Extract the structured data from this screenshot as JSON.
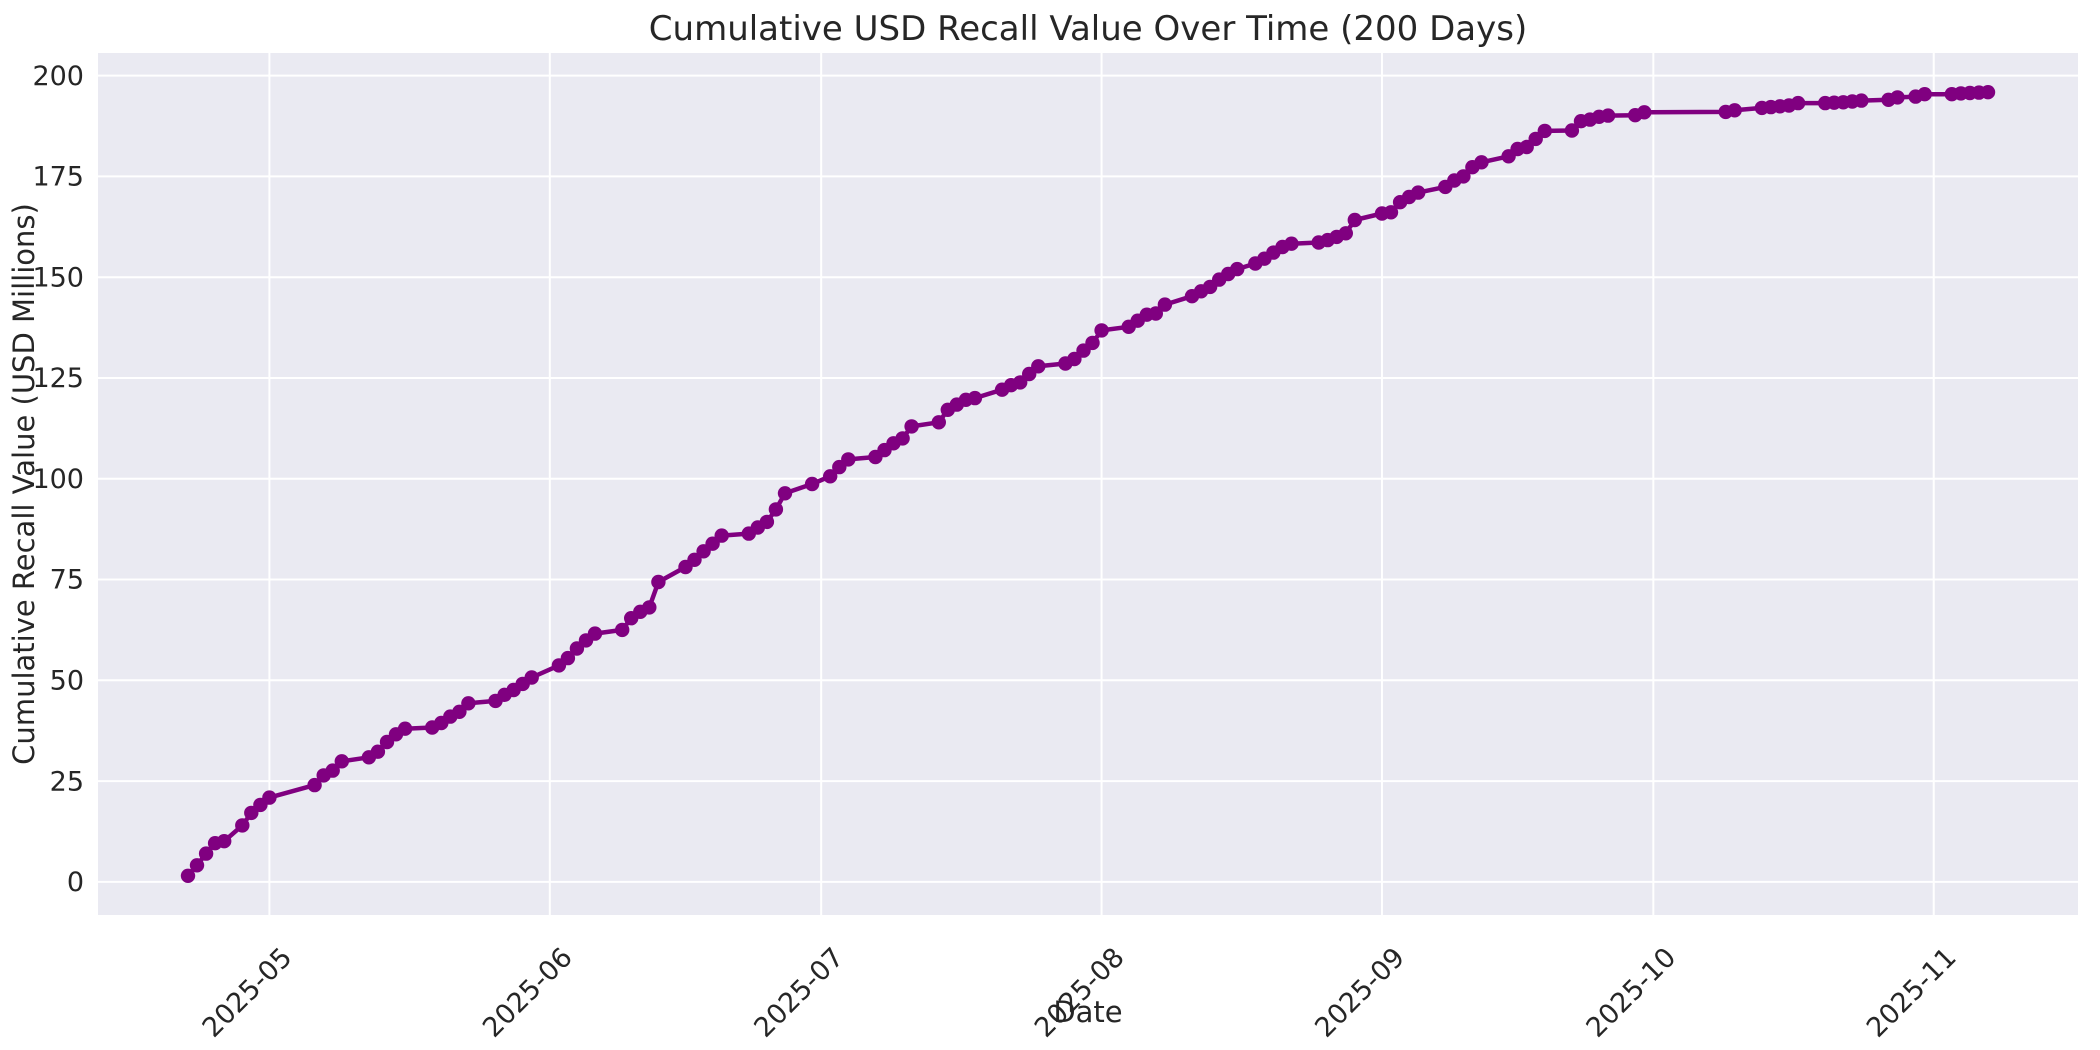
{
  "figure": {
    "background": "#ffffff"
  },
  "chart_data": {
    "type": "line",
    "title": "Cumulative USD Recall Value Over Time (200 Days)",
    "xlabel": "Date",
    "ylabel": "Cumulative Recall Value (USD Millions)",
    "legend": null,
    "grid": true,
    "style": "seaborn-darkgrid",
    "plot_background": "#eaeaf2",
    "grid_color": "#ffffff",
    "line_color": "#800080",
    "marker": "circle",
    "marker_color": "#800080",
    "text_color": "#262626",
    "x_axis_type": "date",
    "x_tick_labels": [
      "2025-05",
      "2025-06",
      "2025-07",
      "2025-08",
      "2025-09",
      "2025-10",
      "2025-11"
    ],
    "x_tick_dates": [
      "2025-05-01",
      "2025-06-01",
      "2025-07-01",
      "2025-08-01",
      "2025-09-01",
      "2025-10-01",
      "2025-11-01"
    ],
    "y_ticks": [
      0,
      25,
      50,
      75,
      100,
      125,
      150,
      175,
      200
    ],
    "ylim_data": [
      1.5,
      195.9
    ],
    "x": [
      "2025-04-22",
      "2025-04-23",
      "2025-04-24",
      "2025-04-25",
      "2025-04-26",
      "2025-04-28",
      "2025-04-29",
      "2025-04-30",
      "2025-05-01",
      "2025-05-06",
      "2025-05-07",
      "2025-05-08",
      "2025-05-09",
      "2025-05-12",
      "2025-05-13",
      "2025-05-14",
      "2025-05-15",
      "2025-05-16",
      "2025-05-19",
      "2025-05-20",
      "2025-05-21",
      "2025-05-22",
      "2025-05-23",
      "2025-05-26",
      "2025-05-27",
      "2025-05-28",
      "2025-05-29",
      "2025-05-30",
      "2025-06-02",
      "2025-06-03",
      "2025-06-04",
      "2025-06-05",
      "2025-06-06",
      "2025-06-09",
      "2025-06-10",
      "2025-06-11",
      "2025-06-12",
      "2025-06-13",
      "2025-06-16",
      "2025-06-17",
      "2025-06-18",
      "2025-06-19",
      "2025-06-20",
      "2025-06-23",
      "2025-06-24",
      "2025-06-25",
      "2025-06-26",
      "2025-06-27",
      "2025-06-30",
      "2025-07-02",
      "2025-07-03",
      "2025-07-04",
      "2025-07-07",
      "2025-07-08",
      "2025-07-09",
      "2025-07-10",
      "2025-07-11",
      "2025-07-14",
      "2025-07-15",
      "2025-07-16",
      "2025-07-17",
      "2025-07-18",
      "2025-07-21",
      "2025-07-22",
      "2025-07-23",
      "2025-07-24",
      "2025-07-25",
      "2025-07-28",
      "2025-07-29",
      "2025-07-30",
      "2025-07-31",
      "2025-08-01",
      "2025-08-04",
      "2025-08-05",
      "2025-08-06",
      "2025-08-07",
      "2025-08-08",
      "2025-08-11",
      "2025-08-12",
      "2025-08-13",
      "2025-08-14",
      "2025-08-15",
      "2025-08-16",
      "2025-08-18",
      "2025-08-19",
      "2025-08-20",
      "2025-08-21",
      "2025-08-22",
      "2025-08-25",
      "2025-08-26",
      "2025-08-27",
      "2025-08-28",
      "2025-08-29",
      "2025-09-01",
      "2025-09-02",
      "2025-09-03",
      "2025-09-04",
      "2025-09-05",
      "2025-09-08",
      "2025-09-09",
      "2025-09-10",
      "2025-09-11",
      "2025-09-12",
      "2025-09-15",
      "2025-09-16",
      "2025-09-17",
      "2025-09-18",
      "2025-09-19",
      "2025-09-22",
      "2025-09-23",
      "2025-09-24",
      "2025-09-25",
      "2025-09-26",
      "2025-09-29",
      "2025-09-30",
      "2025-10-09",
      "2025-10-10",
      "2025-10-13",
      "2025-10-14",
      "2025-10-15",
      "2025-10-16",
      "2025-10-17",
      "2025-10-20",
      "2025-10-21",
      "2025-10-22",
      "2025-10-23",
      "2025-10-24",
      "2025-10-27",
      "2025-10-28",
      "2025-10-30",
      "2025-10-31",
      "2025-11-03",
      "2025-11-04",
      "2025-11-05",
      "2025-11-06",
      "2025-11-07"
    ],
    "y": [
      1.5,
      4.1,
      7.0,
      9.6,
      10.1,
      14.0,
      17.1,
      19.1,
      20.9,
      24.0,
      26.4,
      27.6,
      29.9,
      30.9,
      32.3,
      34.7,
      36.6,
      38.0,
      38.3,
      39.4,
      41.0,
      42.2,
      44.3,
      44.9,
      46.4,
      47.6,
      49.1,
      50.7,
      53.7,
      55.5,
      57.9,
      59.9,
      61.6,
      62.5,
      65.4,
      67.0,
      68.1,
      74.4,
      78.1,
      79.9,
      82.0,
      83.9,
      85.9,
      86.4,
      87.9,
      89.3,
      92.4,
      96.4,
      98.7,
      100.6,
      102.9,
      104.8,
      105.4,
      107.1,
      108.8,
      110.0,
      113.0,
      114.0,
      117.1,
      118.4,
      119.6,
      120.0,
      122.1,
      123.2,
      123.9,
      126.0,
      127.9,
      128.6,
      129.7,
      131.8,
      133.7,
      136.8,
      137.7,
      139.2,
      140.7,
      141.0,
      143.2,
      145.3,
      146.5,
      147.6,
      149.4,
      150.8,
      152.0,
      153.4,
      154.6,
      156.1,
      157.5,
      158.3,
      158.6,
      159.2,
      160.0,
      160.9,
      164.2,
      165.8,
      166.1,
      168.6,
      169.9,
      171.0,
      172.4,
      174.0,
      175.0,
      177.3,
      178.5,
      180.0,
      181.8,
      182.3,
      184.3,
      186.3,
      186.4,
      188.7,
      189.1,
      189.8,
      190.1,
      190.2,
      190.9,
      191.0,
      191.4,
      192.0,
      192.2,
      192.4,
      192.6,
      193.2,
      193.2,
      193.3,
      193.4,
      193.6,
      193.8,
      194.0,
      194.6,
      194.8,
      195.4,
      195.4,
      195.6,
      195.7,
      195.8,
      195.9
    ]
  }
}
